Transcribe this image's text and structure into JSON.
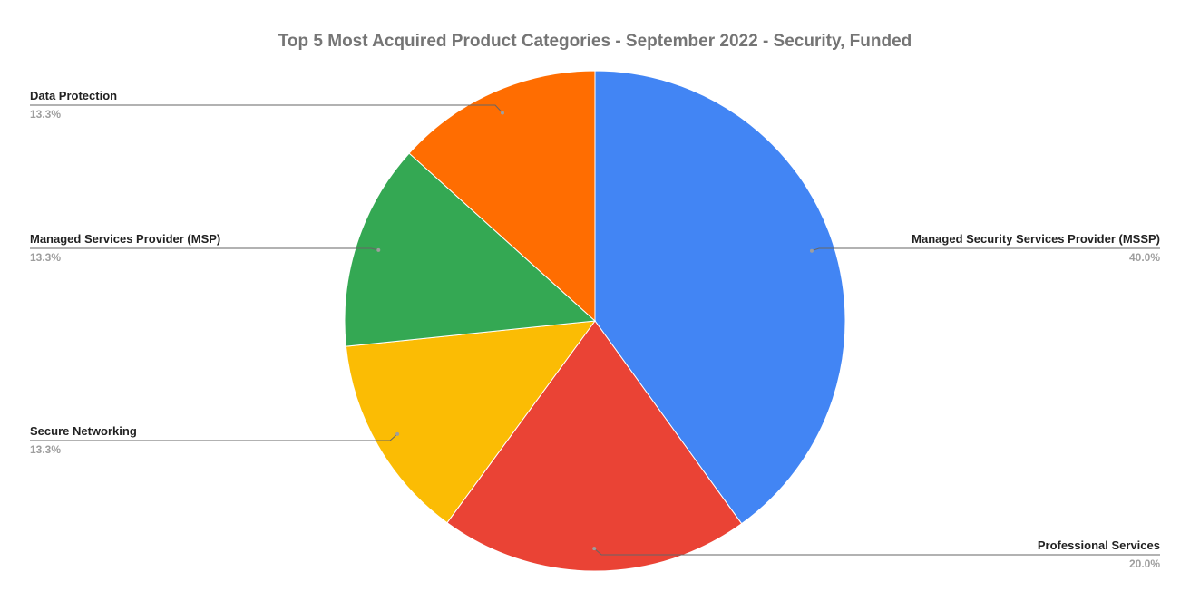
{
  "chart_data": {
    "type": "pie",
    "title": "Top 5 Most Acquired Product Categories - September 2022 - Security, Funded",
    "legend": "labels-with-leader-lines",
    "slices": [
      {
        "label": "Managed Security Services Provider (MSSP)",
        "value": 40.0,
        "value_label": "40.0%",
        "color": "#4285F4"
      },
      {
        "label": "Professional Services",
        "value": 20.0,
        "value_label": "20.0%",
        "color": "#EA4335"
      },
      {
        "label": "Secure Networking",
        "value": 13.3,
        "value_label": "13.3%",
        "color": "#FBBC04"
      },
      {
        "label": "Managed Services Provider (MSP)",
        "value": 13.3,
        "value_label": "13.3%",
        "color": "#34A853"
      },
      {
        "label": "Data Protection",
        "value": 13.3,
        "value_label": "13.3%",
        "color": "#FF6D01"
      }
    ]
  }
}
